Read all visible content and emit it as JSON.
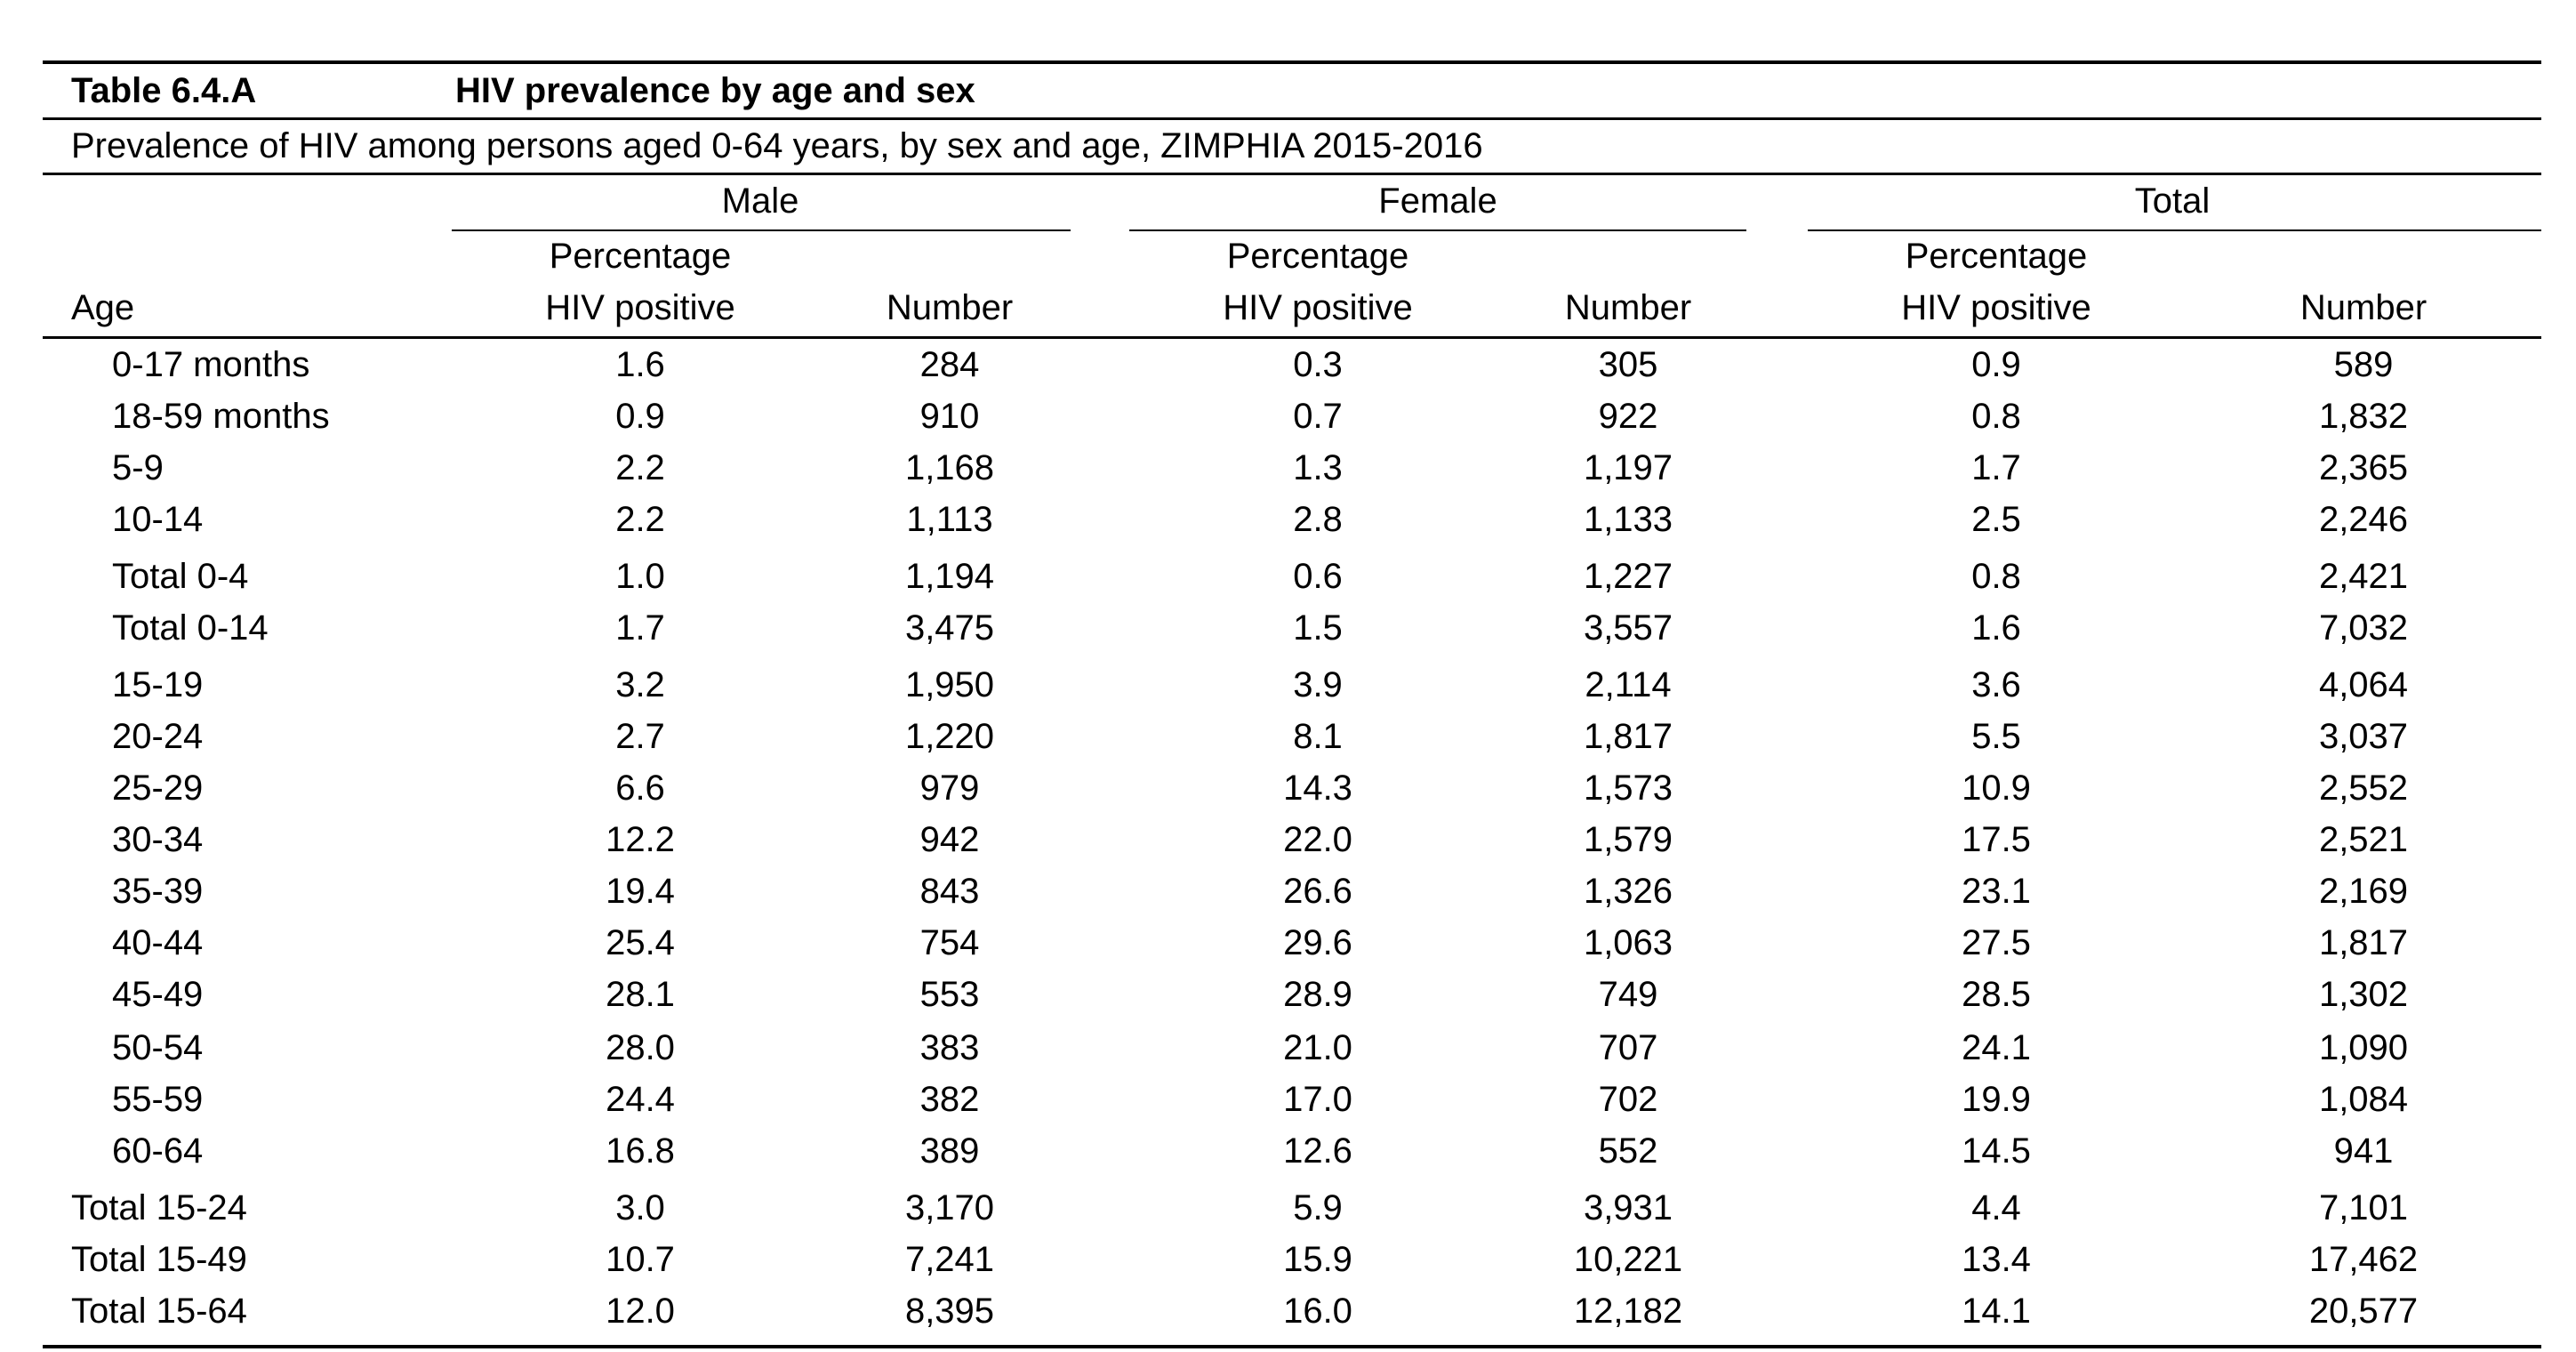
{
  "table_id": "Table 6.4.A",
  "table_title": "HIV prevalence by age and sex",
  "caption": "Prevalence of HIV among persons aged 0-64 years, by sex and age, ZIMPHIA 2015-2016",
  "groups": [
    "Male",
    "Female",
    "Total"
  ],
  "col_pct_line1": "Percentage",
  "col_pct_line2": "HIV positive",
  "col_number": "Number",
  "col_age": "Age",
  "rows": [
    {
      "age": "0-17 months",
      "indent": true,
      "m_pct": "1.6",
      "m_num": "284",
      "f_pct": "0.3",
      "f_num": "305",
      "t_pct": "0.9",
      "t_num": "589"
    },
    {
      "age": "18-59 months",
      "indent": true,
      "m_pct": "0.9",
      "m_num": "910",
      "f_pct": "0.7",
      "f_num": "922",
      "t_pct": "0.8",
      "t_num": "1,832"
    },
    {
      "age": "5-9",
      "indent": true,
      "m_pct": "2.2",
      "m_num": "1,168",
      "f_pct": "1.3",
      "f_num": "1,197",
      "t_pct": "1.7",
      "t_num": "2,365"
    },
    {
      "age": "10-14",
      "indent": true,
      "m_pct": "2.2",
      "m_num": "1,113",
      "f_pct": "2.8",
      "f_num": "1,133",
      "t_pct": "2.5",
      "t_num": "2,246"
    },
    {
      "age": "Total 0-4",
      "indent": true,
      "m_pct": "1.0",
      "m_num": "1,194",
      "f_pct": "0.6",
      "f_num": "1,227",
      "t_pct": "0.8",
      "t_num": "2,421"
    },
    {
      "age": "Total 0-14",
      "indent": true,
      "m_pct": "1.7",
      "m_num": "3,475",
      "f_pct": "1.5",
      "f_num": "3,557",
      "t_pct": "1.6",
      "t_num": "7,032"
    },
    {
      "age": "15-19",
      "indent": true,
      "m_pct": "3.2",
      "m_num": "1,950",
      "f_pct": "3.9",
      "f_num": "2,114",
      "t_pct": "3.6",
      "t_num": "4,064"
    },
    {
      "age": "20-24",
      "indent": true,
      "m_pct": "2.7",
      "m_num": "1,220",
      "f_pct": "8.1",
      "f_num": "1,817",
      "t_pct": "5.5",
      "t_num": "3,037"
    },
    {
      "age": "25-29",
      "indent": true,
      "m_pct": "6.6",
      "m_num": "979",
      "f_pct": "14.3",
      "f_num": "1,573",
      "t_pct": "10.9",
      "t_num": "2,552"
    },
    {
      "age": "30-34",
      "indent": true,
      "m_pct": "12.2",
      "m_num": "942",
      "f_pct": "22.0",
      "f_num": "1,579",
      "t_pct": "17.5",
      "t_num": "2,521"
    },
    {
      "age": "35-39",
      "indent": true,
      "m_pct": "19.4",
      "m_num": "843",
      "f_pct": "26.6",
      "f_num": "1,326",
      "t_pct": "23.1",
      "t_num": "2,169"
    },
    {
      "age": "40-44",
      "indent": true,
      "m_pct": "25.4",
      "m_num": "754",
      "f_pct": "29.6",
      "f_num": "1,063",
      "t_pct": "27.5",
      "t_num": "1,817"
    },
    {
      "age": "45-49",
      "indent": true,
      "m_pct": "28.1",
      "m_num": "553",
      "f_pct": "28.9",
      "f_num": "749",
      "t_pct": "28.5",
      "t_num": "1,302"
    },
    {
      "age": "50-54",
      "indent": true,
      "m_pct": "28.0",
      "m_num": "383",
      "f_pct": "21.0",
      "f_num": "707",
      "t_pct": "24.1",
      "t_num": "1,090"
    },
    {
      "age": "55-59",
      "indent": true,
      "m_pct": "24.4",
      "m_num": "382",
      "f_pct": "17.0",
      "f_num": "702",
      "t_pct": "19.9",
      "t_num": "1,084"
    },
    {
      "age": "60-64",
      "indent": true,
      "m_pct": "16.8",
      "m_num": "389",
      "f_pct": "12.6",
      "f_num": "552",
      "t_pct": "14.5",
      "t_num": "941"
    },
    {
      "age": "Total 15-24",
      "indent": false,
      "m_pct": "3.0",
      "m_num": "3,170",
      "f_pct": "5.9",
      "f_num": "3,931",
      "t_pct": "4.4",
      "t_num": "7,101"
    },
    {
      "age": "Total 15-49",
      "indent": false,
      "m_pct": "10.7",
      "m_num": "7,241",
      "f_pct": "15.9",
      "f_num": "10,221",
      "t_pct": "13.4",
      "t_num": "17,462"
    },
    {
      "age": "Total 15-64",
      "indent": false,
      "m_pct": "12.0",
      "m_num": "8,395",
      "f_pct": "16.0",
      "f_num": "12,182",
      "t_pct": "14.1",
      "t_num": "20,577"
    }
  ]
}
